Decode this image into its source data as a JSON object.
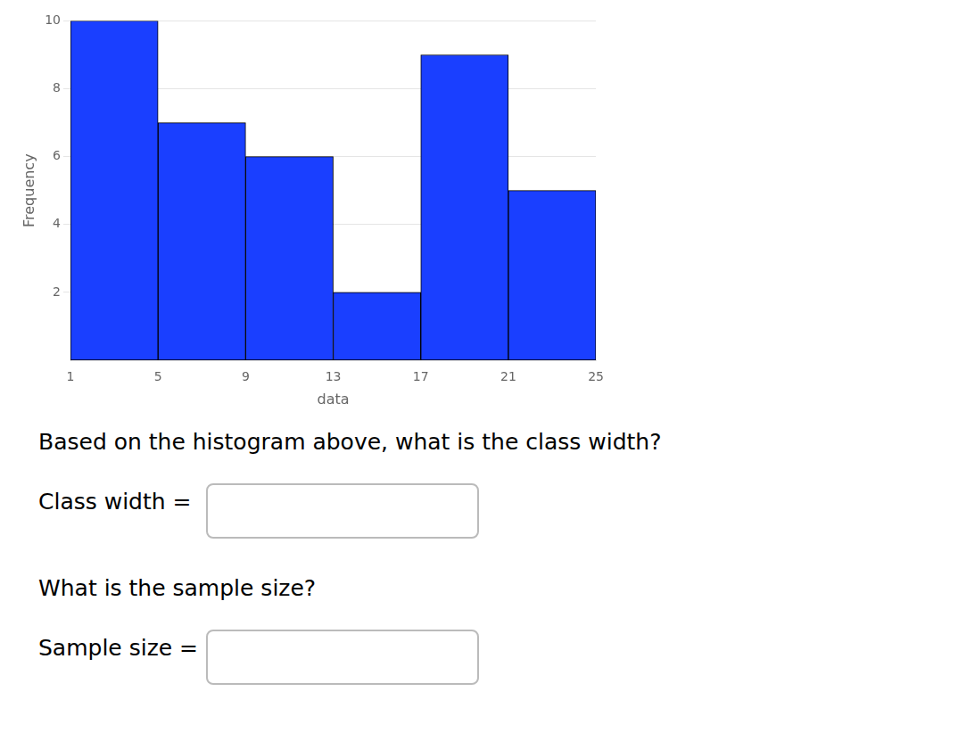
{
  "chart_data": {
    "type": "histogram",
    "bins": [
      1,
      5,
      9,
      13,
      17,
      21,
      25
    ],
    "values": [
      10,
      7,
      6,
      2,
      9,
      5
    ],
    "color": "#1a3fff",
    "xlabel": "data",
    "ylabel": "Frequency",
    "xlim": [
      1,
      25
    ],
    "ylim": [
      0,
      10
    ],
    "xticks": [
      1,
      5,
      9,
      13,
      17,
      21,
      25
    ],
    "yticks": [
      2,
      4,
      6,
      8,
      10
    ],
    "grid": "y",
    "annotations": [
      "Based on the histogram above, what is the class width?",
      "Class width =",
      "What is the sample size?",
      "Sample size ="
    ]
  }
}
